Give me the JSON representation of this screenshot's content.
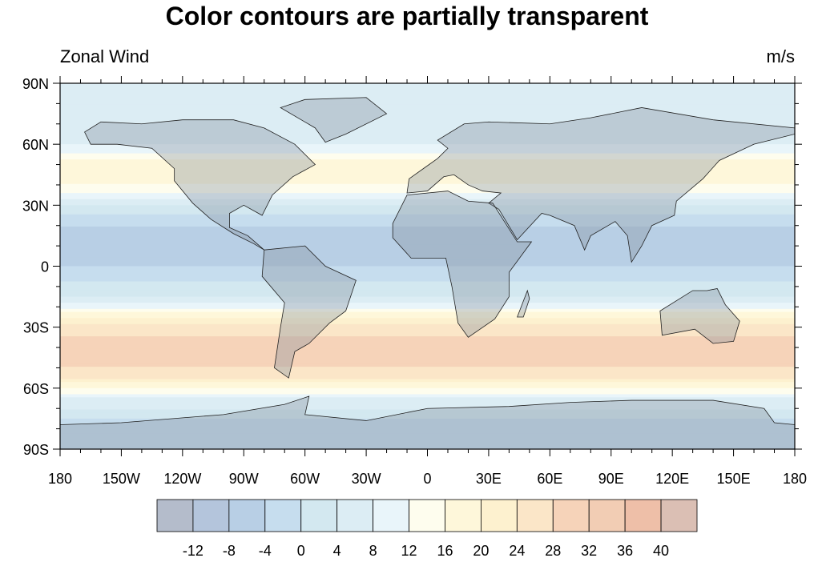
{
  "title": "Color contours are partially transparent",
  "left_string": "Zonal Wind",
  "right_string": "m/s",
  "chart_data": {
    "type": "heatmap",
    "projection": "cylindrical-equidistant",
    "variable": "Zonal Wind",
    "units": "m/s",
    "xlim": [
      -180,
      180
    ],
    "ylim": [
      -90,
      90
    ],
    "x_ticks": [
      "180",
      "150W",
      "120W",
      "90W",
      "60W",
      "30W",
      "0",
      "30E",
      "60E",
      "90E",
      "120E",
      "150E",
      "180"
    ],
    "y_ticks": [
      "90N",
      "60N",
      "30N",
      "0",
      "30S",
      "60S",
      "90S"
    ],
    "zonal_mean_profile": {
      "lat": [
        90,
        75,
        60,
        50,
        40,
        30,
        15,
        0,
        -15,
        -30,
        -45,
        -55,
        -65,
        -75,
        -90
      ],
      "u": [
        4,
        4,
        8,
        18,
        16,
        4,
        -8,
        -4,
        4,
        26,
        32,
        24,
        8,
        0,
        -4
      ]
    },
    "colorbar": {
      "labels": [
        "-12",
        "-8",
        "-4",
        "0",
        "4",
        "8",
        "12",
        "16",
        "20",
        "24",
        "28",
        "32",
        "36",
        "40"
      ],
      "levels": [
        -12,
        -8,
        -4,
        0,
        4,
        8,
        12,
        16,
        20,
        24,
        28,
        32,
        36,
        40
      ],
      "colors": [
        "#b4bccb",
        "#b4c5dc",
        "#b8cfe5",
        "#c6ddee",
        "#d3e8f0",
        "#dcedf4",
        "#e9f5fa",
        "#fefdee",
        "#fef7da",
        "#fdf1cf",
        "#fbe6c8",
        "#f6d3b9",
        "#f2cdb4",
        "#eebfa8",
        "#dbbfb4"
      ]
    }
  }
}
